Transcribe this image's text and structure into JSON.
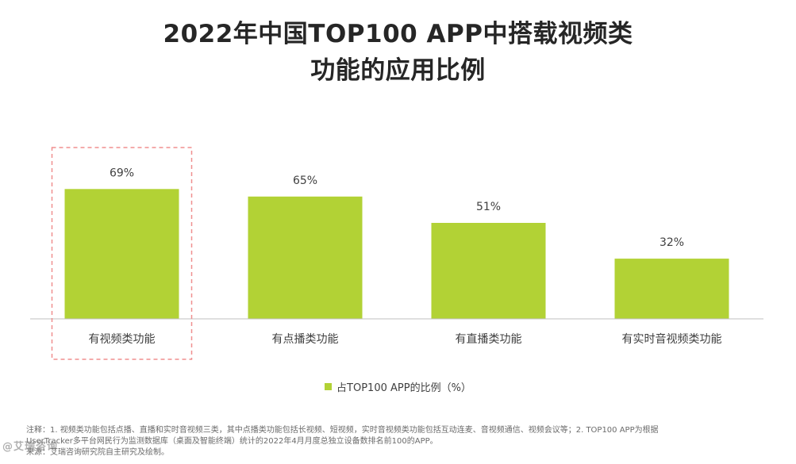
{
  "title": {
    "line1": "2022年中国TOP100 APP中搭载视频类",
    "line2": "功能的应用比例"
  },
  "colors": {
    "bar": "#b2d235",
    "highlight_border": "#f08f8f",
    "axis": "#bfbfbf"
  },
  "chart_data": {
    "type": "bar",
    "title": "2022年中国TOP100 APP中搭载视频类功能的应用比例",
    "categories": [
      "有视频类功能",
      "有点播类功能",
      "有直播类功能",
      "有实时音视频类功能"
    ],
    "series": [
      {
        "name": "占TOP100 APP的比例（%）",
        "values": [
          69,
          65,
          51,
          32
        ],
        "labels": [
          "69%",
          "65%",
          "51%",
          "32%"
        ]
      }
    ],
    "highlighted_category": "有视频类功能",
    "xlabel": "",
    "ylabel": "",
    "ylim": [
      0,
      100
    ],
    "grid": false,
    "legend": "bottom-center"
  },
  "legend": {
    "label": "占TOP100 APP的比例（%）"
  },
  "notes": {
    "line1": "注释：1. 视频类功能包括点播、直播和实时音视频三类，其中点播类功能包括长视频、短视频，实时音视频类功能包括互动连麦、音视频通信、视频会议等；2. TOP100 APP为根据",
    "line2": "UserTracker多平台网民行为监测数据库（桌面及智能终端）统计的2022年4月月度总独立设备数排名前100的APP。",
    "line3": "来源：艾瑞咨询研究院自主研究及绘制。"
  },
  "watermark": "@艾瑞咨询"
}
